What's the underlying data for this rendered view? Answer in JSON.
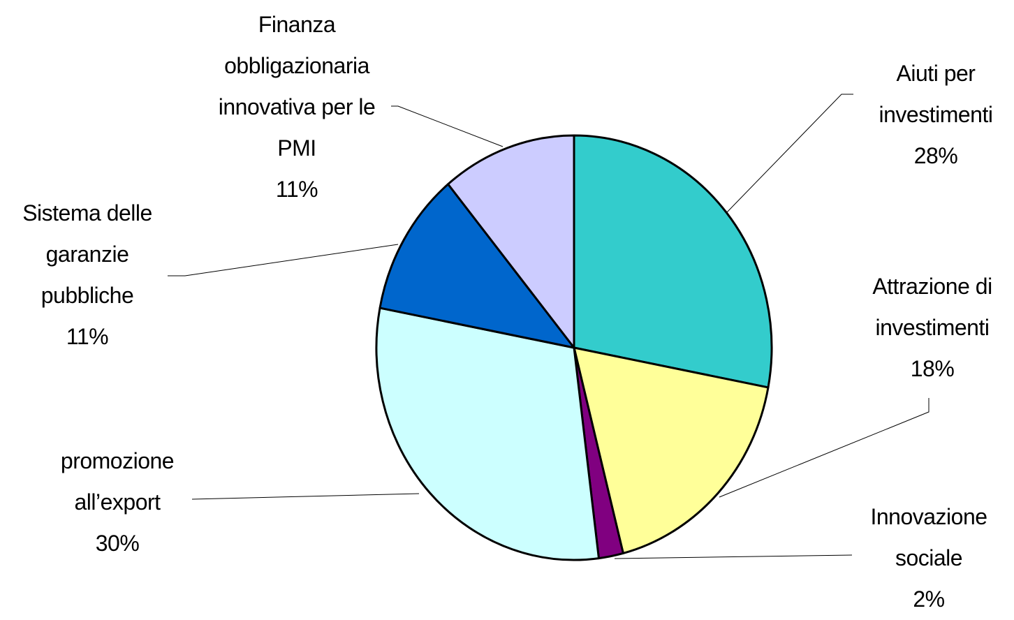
{
  "chart_data": {
    "type": "pie",
    "categories": [
      "Aiuti per investimenti",
      "Attrazione di investimenti",
      "Innovazione sociale",
      "promozione all’export",
      "Sistema delle garanzie pubbliche",
      "Finanza obbligazionaria innovativa per le PMI"
    ],
    "values": [
      28,
      18,
      2,
      30,
      11,
      11
    ],
    "value_labels": [
      "28%",
      "18%",
      "2%",
      "30%",
      "11%",
      "11%"
    ],
    "colors": [
      "#33cccc",
      "#ffff99",
      "#800080",
      "#ccffff",
      "#0066cc",
      "#ccccff"
    ]
  }
}
